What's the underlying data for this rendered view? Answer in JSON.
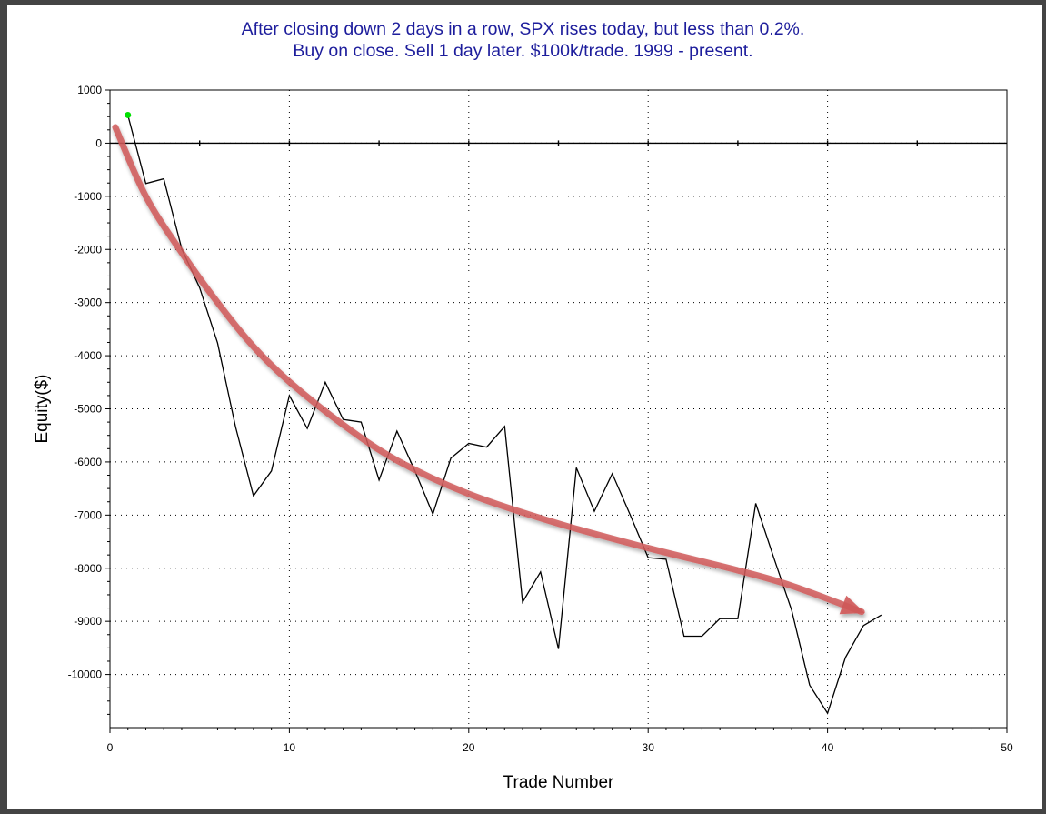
{
  "chart_data": {
    "type": "line",
    "title_lines": [
      "After closing down 2 days in a row, SPX rises today, but less than 0.2%.",
      "Buy on close. Sell 1 day later. $100k/trade. 1999 - present."
    ],
    "xlabel": "Trade Number",
    "ylabel": "Equity($)",
    "xlim": [
      0,
      50
    ],
    "ylim": [
      -11000,
      1000
    ],
    "x_ticks": [
      0,
      10,
      20,
      30,
      40,
      50
    ],
    "y_ticks": [
      1000,
      0,
      -1000,
      -2000,
      -3000,
      -4000,
      -5000,
      -6000,
      -7000,
      -8000,
      -9000,
      -10000
    ],
    "grid": true,
    "series": [
      {
        "color": "#000000",
        "x": [
          1,
          2,
          3,
          4,
          5,
          6,
          7,
          8,
          9,
          10,
          11,
          12,
          13,
          14,
          15,
          16,
          17,
          18,
          19,
          20,
          21,
          22,
          23,
          24,
          25,
          26,
          27,
          28,
          29,
          30,
          31,
          32,
          33,
          34,
          35,
          36,
          37,
          38,
          39,
          40,
          41,
          42,
          43
        ],
        "y": [
          530,
          -760,
          -670,
          -1990,
          -2720,
          -3760,
          -5340,
          -6640,
          -6170,
          -4750,
          -5370,
          -4500,
          -5200,
          -5250,
          -6340,
          -5420,
          -6170,
          -6980,
          -5930,
          -5650,
          -5720,
          -5330,
          -8640,
          -8070,
          -9520,
          -6110,
          -6930,
          -6220,
          -7000,
          -7800,
          -7830,
          -9280,
          -9280,
          -8950,
          -8950,
          -6780,
          -7800,
          -8790,
          -10200,
          -10730,
          -9680,
          -9080,
          -8880
        ]
      }
    ],
    "start_marker": {
      "x": 1,
      "y": 530,
      "color": "#00e000"
    },
    "trend_arrow": {
      "color": "#d05a5a",
      "x": [
        0.3,
        2,
        4,
        6,
        8,
        10,
        13,
        16,
        20,
        25,
        30,
        35,
        38,
        41.9
      ],
      "y": [
        300,
        -1000,
        -2060,
        -3000,
        -3830,
        -4490,
        -5300,
        -5970,
        -6600,
        -7160,
        -7620,
        -8040,
        -8330,
        -8820
      ]
    },
    "line_color": "#000000"
  }
}
